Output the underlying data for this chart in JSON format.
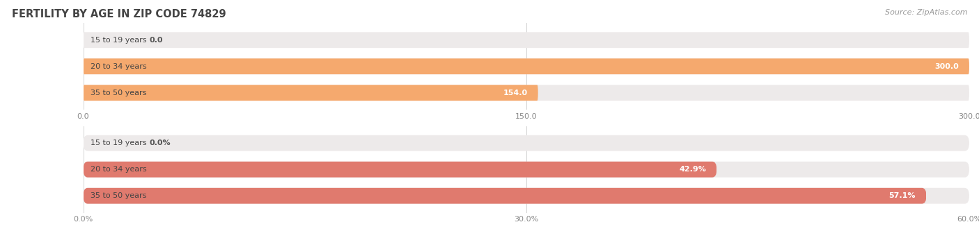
{
  "title": "FERTILITY BY AGE IN ZIP CODE 74829",
  "source": "Source: ZipAtlas.com",
  "top_chart": {
    "categories": [
      "15 to 19 years",
      "20 to 34 years",
      "35 to 50 years"
    ],
    "values": [
      0.0,
      300.0,
      154.0
    ],
    "xlim": [
      0,
      300.0
    ],
    "xticks": [
      0.0,
      150.0,
      300.0
    ],
    "bar_color": "#F5A96E",
    "bar_bg_color": "#EDEAEA",
    "bar_height": 0.6
  },
  "bottom_chart": {
    "categories": [
      "15 to 19 years",
      "20 to 34 years",
      "35 to 50 years"
    ],
    "values": [
      0.0,
      42.9,
      57.1
    ],
    "xlim": [
      0,
      60.0
    ],
    "xticks": [
      0.0,
      30.0,
      60.0
    ],
    "xtick_labels": [
      "0.0%",
      "30.0%",
      "60.0%"
    ],
    "bar_color": "#E07A6E",
    "bar_bg_color": "#EDEAEA",
    "bar_height": 0.6
  },
  "label_color": "#555555",
  "background_color": "#ffffff",
  "fig_bg_color": "#ffffff"
}
